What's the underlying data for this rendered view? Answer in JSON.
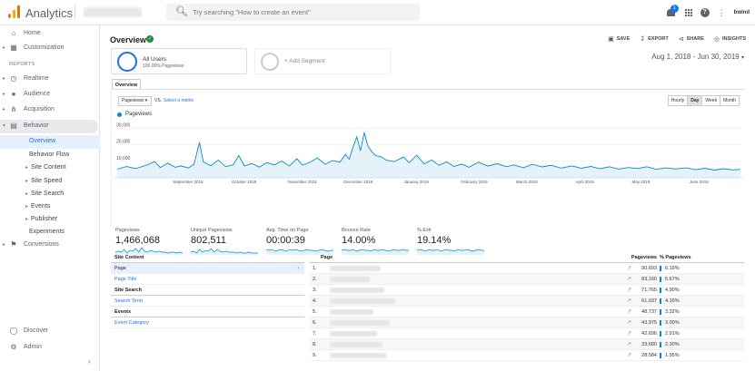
{
  "app": {
    "title": "Analytics",
    "search_placeholder": "Try searching \"How to create an event\"",
    "notification_count": "1",
    "user_label": "bwind"
  },
  "sidebar": {
    "home": "Home",
    "customization": "Customization",
    "reports_heading": "REPORTS",
    "realtime": "Realtime",
    "audience": "Audience",
    "acquisition": "Acquisition",
    "behavior": "Behavior",
    "behavior_items": [
      "Overview",
      "Behavior Flow",
      "Site Content",
      "Site Speed",
      "Site Search",
      "Events",
      "Publisher",
      "Experiments"
    ],
    "conversions": "Conversions",
    "discover": "Discover",
    "admin": "Admin"
  },
  "header": {
    "title": "Overview",
    "actions": {
      "save": "SAVE",
      "export": "EXPORT",
      "share": "SHARE",
      "insights": "INSIGHTS"
    },
    "date_range": "Aug 1, 2018 - Jun 30, 2019"
  },
  "segments": {
    "all_users": "All Users",
    "all_users_sub": "100.00% Pageviews",
    "add_segment": "+ Add Segment"
  },
  "tab": "Overview",
  "controls": {
    "metric": "Pageviews",
    "vs": "VS.",
    "select_metric": "Select a metric",
    "granularity": [
      "Hourly",
      "Day",
      "Week",
      "Month"
    ],
    "granularity_selected": "Day"
  },
  "chart_data": {
    "type": "area",
    "series": [
      {
        "name": "Pageviews",
        "color": "#058dc7"
      }
    ],
    "y_ticks": [
      "30,000",
      "20,000",
      "10,000"
    ],
    "x_ticks": [
      "September 2018",
      "October 2018",
      "November 2018",
      "December 2018",
      "January 2019",
      "February 2019",
      "March 2019",
      "April 2019",
      "May 2019",
      "June 2019"
    ],
    "ylim": [
      0,
      33000
    ],
    "xlim": [
      "2018-08-01",
      "2019-06-30"
    ],
    "points": [
      [
        "2018-08-01",
        5200
      ],
      [
        "2018-08-06",
        6800
      ],
      [
        "2018-08-11",
        5600
      ],
      [
        "2018-08-16",
        7400
      ],
      [
        "2018-08-21",
        9800
      ],
      [
        "2018-08-24",
        6200
      ],
      [
        "2018-08-28",
        8900
      ],
      [
        "2018-09-01",
        6400
      ],
      [
        "2018-09-04",
        7200
      ],
      [
        "2018-09-08",
        6000
      ],
      [
        "2018-09-11",
        8100
      ],
      [
        "2018-09-14",
        21500
      ],
      [
        "2018-09-16",
        9600
      ],
      [
        "2018-09-20",
        7300
      ],
      [
        "2018-09-24",
        10800
      ],
      [
        "2018-09-28",
        6700
      ],
      [
        "2018-10-02",
        7900
      ],
      [
        "2018-10-05",
        13500
      ],
      [
        "2018-10-08",
        7200
      ],
      [
        "2018-10-12",
        8700
      ],
      [
        "2018-10-16",
        6500
      ],
      [
        "2018-10-20",
        9200
      ],
      [
        "2018-10-24",
        7800
      ],
      [
        "2018-10-28",
        10200
      ],
      [
        "2018-11-01",
        7100
      ],
      [
        "2018-11-05",
        11600
      ],
      [
        "2018-11-08",
        7700
      ],
      [
        "2018-11-12",
        9400
      ],
      [
        "2018-11-16",
        12100
      ],
      [
        "2018-11-20",
        8200
      ],
      [
        "2018-11-24",
        10400
      ],
      [
        "2018-11-28",
        9500
      ],
      [
        "2018-12-01",
        14200
      ],
      [
        "2018-12-03",
        11300
      ],
      [
        "2018-12-05",
        18700
      ],
      [
        "2018-12-07",
        24800
      ],
      [
        "2018-12-09",
        16400
      ],
      [
        "2018-12-11",
        27500
      ],
      [
        "2018-12-13",
        19200
      ],
      [
        "2018-12-15",
        15800
      ],
      [
        "2018-12-17",
        13500
      ],
      [
        "2018-12-20",
        12700
      ],
      [
        "2018-12-23",
        10600
      ],
      [
        "2018-12-27",
        9800
      ],
      [
        "2019-01-01",
        12600
      ],
      [
        "2019-01-04",
        9200
      ],
      [
        "2019-01-08",
        13700
      ],
      [
        "2019-01-12",
        8400
      ],
      [
        "2019-01-16",
        10800
      ],
      [
        "2019-01-20",
        7600
      ],
      [
        "2019-01-24",
        9700
      ],
      [
        "2019-01-28",
        6900
      ],
      [
        "2019-02-01",
        8300
      ],
      [
        "2019-02-05",
        6400
      ],
      [
        "2019-02-10",
        9500
      ],
      [
        "2019-02-15",
        7100
      ],
      [
        "2019-02-20",
        8600
      ],
      [
        "2019-02-25",
        6700
      ],
      [
        "2019-03-01",
        7800
      ],
      [
        "2019-03-06",
        6100
      ],
      [
        "2019-03-11",
        8200
      ],
      [
        "2019-03-16",
        6600
      ],
      [
        "2019-03-21",
        7600
      ],
      [
        "2019-03-26",
        5900
      ],
      [
        "2019-04-01",
        7200
      ],
      [
        "2019-04-06",
        5800
      ],
      [
        "2019-04-11",
        6900
      ],
      [
        "2019-04-16",
        5500
      ],
      [
        "2019-04-21",
        6700
      ],
      [
        "2019-04-26",
        5300
      ],
      [
        "2019-05-01",
        6200
      ],
      [
        "2019-05-06",
        5600
      ],
      [
        "2019-05-11",
        6700
      ],
      [
        "2019-05-16",
        5100
      ],
      [
        "2019-05-21",
        6000
      ],
      [
        "2019-05-26",
        5400
      ],
      [
        "2019-06-01",
        6000
      ],
      [
        "2019-06-06",
        4900
      ],
      [
        "2019-06-11",
        5800
      ],
      [
        "2019-06-16",
        4700
      ],
      [
        "2019-06-21",
        5500
      ],
      [
        "2019-06-26",
        4800
      ],
      [
        "2019-06-30",
        5100
      ]
    ]
  },
  "metrics": [
    {
      "label": "Pageviews",
      "value": "1,466,068"
    },
    {
      "label": "Unique Pageviews",
      "value": "802,511"
    },
    {
      "label": "Avg. Time on Page",
      "value": "00:00:39"
    },
    {
      "label": "Bounce Rate",
      "value": "14.00%"
    },
    {
      "label": "% Exit",
      "value": "19.14%"
    }
  ],
  "left_table": {
    "site_content": "Site Content",
    "page": "Page",
    "page_title": "Page Title",
    "site_search": "Site Search",
    "search_term": "Search Term",
    "events": "Events",
    "event_category": "Event Category"
  },
  "right_table": {
    "headers": {
      "page": "Page",
      "pageviews": "Pageviews",
      "pct": "% Pageviews"
    },
    "rows": [
      {
        "idx": "1.",
        "pageviews": "90,693",
        "pct": "6.19%"
      },
      {
        "idx": "2.",
        "pageviews": "83,160",
        "pct": "5.67%"
      },
      {
        "idx": "3.",
        "pageviews": "71,765",
        "pct": "4.90%"
      },
      {
        "idx": "4.",
        "pageviews": "61,037",
        "pct": "4.16%"
      },
      {
        "idx": "5.",
        "pageviews": "48,737",
        "pct": "3.32%"
      },
      {
        "idx": "6.",
        "pageviews": "43,975",
        "pct": "3.00%"
      },
      {
        "idx": "7.",
        "pageviews": "42,696",
        "pct": "2.91%"
      },
      {
        "idx": "8.",
        "pageviews": "33,680",
        "pct": "2.30%"
      },
      {
        "idx": "9.",
        "pageviews": "28,584",
        "pct": "1.95%"
      }
    ]
  }
}
